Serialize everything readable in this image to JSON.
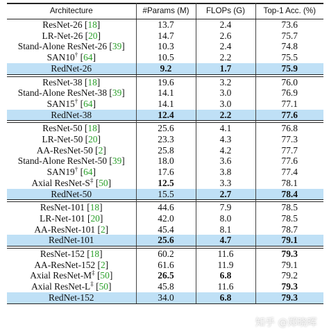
{
  "header": [
    "Architecture",
    "#Params (M)",
    "FLOPs (G)",
    "Top-1 Acc. (%)"
  ],
  "groups": [
    {
      "rows": [
        {
          "name": "ResNet-26",
          "ref": "[18]",
          "sup": "",
          "params": "13.7",
          "flops": "2.4",
          "acc": "73.6"
        },
        {
          "name": "LR-Net-26",
          "ref": "[20]",
          "sup": "",
          "params": "14.7",
          "flops": "2.6",
          "acc": "75.7"
        },
        {
          "name": "Stand-Alone ResNet-26",
          "ref": "[39]",
          "sup": "",
          "params": "10.3",
          "flops": "2.4",
          "acc": "74.8"
        },
        {
          "name": "SAN10",
          "ref": "[64]",
          "sup": "†",
          "params": "10.5",
          "flops": "2.2",
          "acc": "75.5"
        },
        {
          "name": "RedNet-26",
          "ref": "",
          "sup": "",
          "params": "9.2",
          "flops": "1.7",
          "acc": "75.9",
          "highlight": true,
          "bold": [
            "params",
            "flops",
            "acc"
          ]
        }
      ]
    },
    {
      "rows": [
        {
          "name": "ResNet-38",
          "ref": "[18]",
          "sup": "",
          "params": "19.6",
          "flops": "3.2",
          "acc": "76.0"
        },
        {
          "name": "Stand-Alone ResNet-38",
          "ref": "[39]",
          "sup": "",
          "params": "14.1",
          "flops": "3.0",
          "acc": "76.9"
        },
        {
          "name": "SAN15",
          "ref": "[64]",
          "sup": "†",
          "params": "14.1",
          "flops": "3.0",
          "acc": "77.1"
        },
        {
          "name": "RedNet-38",
          "ref": "",
          "sup": "",
          "params": "12.4",
          "flops": "2.2",
          "acc": "77.6",
          "highlight": true,
          "bold": [
            "params",
            "flops",
            "acc"
          ]
        }
      ]
    },
    {
      "rows": [
        {
          "name": "ResNet-50",
          "ref": "[18]",
          "sup": "",
          "params": "25.6",
          "flops": "4.1",
          "acc": "76.8"
        },
        {
          "name": "LR-Net-50",
          "ref": "[20]",
          "sup": "",
          "params": "23.3",
          "flops": "4.3",
          "acc": "77.3"
        },
        {
          "name": "AA-ResNet-50",
          "ref": "[2]",
          "sup": "",
          "params": "25.8",
          "flops": "4.2",
          "acc": "77.7"
        },
        {
          "name": "Stand-Alone ResNet-50",
          "ref": "[39]",
          "sup": "",
          "params": "18.0",
          "flops": "3.6",
          "acc": "77.6"
        },
        {
          "name": "SAN19",
          "ref": "[64]",
          "sup": "†",
          "params": "17.6",
          "flops": "3.8",
          "acc": "77.4"
        },
        {
          "name": "Axial ResNet-S",
          "ref": "[50]",
          "sup": "‡",
          "params": "12.5",
          "flops": "3.3",
          "acc": "78.1",
          "bold": [
            "params"
          ]
        },
        {
          "name": "RedNet-50",
          "ref": "",
          "sup": "",
          "params": "15.5",
          "flops": "2.7",
          "acc": "78.4",
          "highlight": true,
          "bold": [
            "flops",
            "acc"
          ]
        }
      ]
    },
    {
      "rows": [
        {
          "name": "ResNet-101",
          "ref": "[18]",
          "sup": "",
          "params": "44.6",
          "flops": "7.9",
          "acc": "78.5"
        },
        {
          "name": "LR-Net-101",
          "ref": "[20]",
          "sup": "",
          "params": "42.0",
          "flops": "8.0",
          "acc": "78.5"
        },
        {
          "name": "AA-ResNet-101",
          "ref": "[2]",
          "sup": "",
          "params": "45.4",
          "flops": "8.1",
          "acc": "78.7"
        },
        {
          "name": "RedNet-101",
          "ref": "",
          "sup": "",
          "params": "25.6",
          "flops": "4.7",
          "acc": "79.1",
          "highlight": true,
          "bold": [
            "params",
            "flops",
            "acc"
          ]
        }
      ]
    },
    {
      "rows": [
        {
          "name": "ResNet-152",
          "ref": "[18]",
          "sup": "",
          "params": "60.2",
          "flops": "11.6",
          "acc": "79.3",
          "bold": [
            "acc"
          ]
        },
        {
          "name": "AA-ResNet-152",
          "ref": "[2]",
          "sup": "",
          "params": "61.6",
          "flops": "11.9",
          "acc": "79.1"
        },
        {
          "name": "Axial ResNet-M",
          "ref": "[50]",
          "sup": "‡",
          "params": "26.5",
          "flops": "6.8",
          "acc": "79.2",
          "bold": [
            "params",
            "flops"
          ]
        },
        {
          "name": "Axial ResNet-L",
          "ref": "[50]",
          "sup": "‡",
          "params": "45.8",
          "flops": "11.6",
          "acc": "79.3",
          "bold": [
            "acc"
          ]
        },
        {
          "name": "RedNet-152",
          "ref": "",
          "sup": "",
          "params": "34.0",
          "flops": "6.8",
          "acc": "79.3",
          "highlight": true,
          "bold": [
            "flops",
            "acc"
          ]
        }
      ]
    }
  ],
  "watermark": "知乎 @郑晓晖"
}
